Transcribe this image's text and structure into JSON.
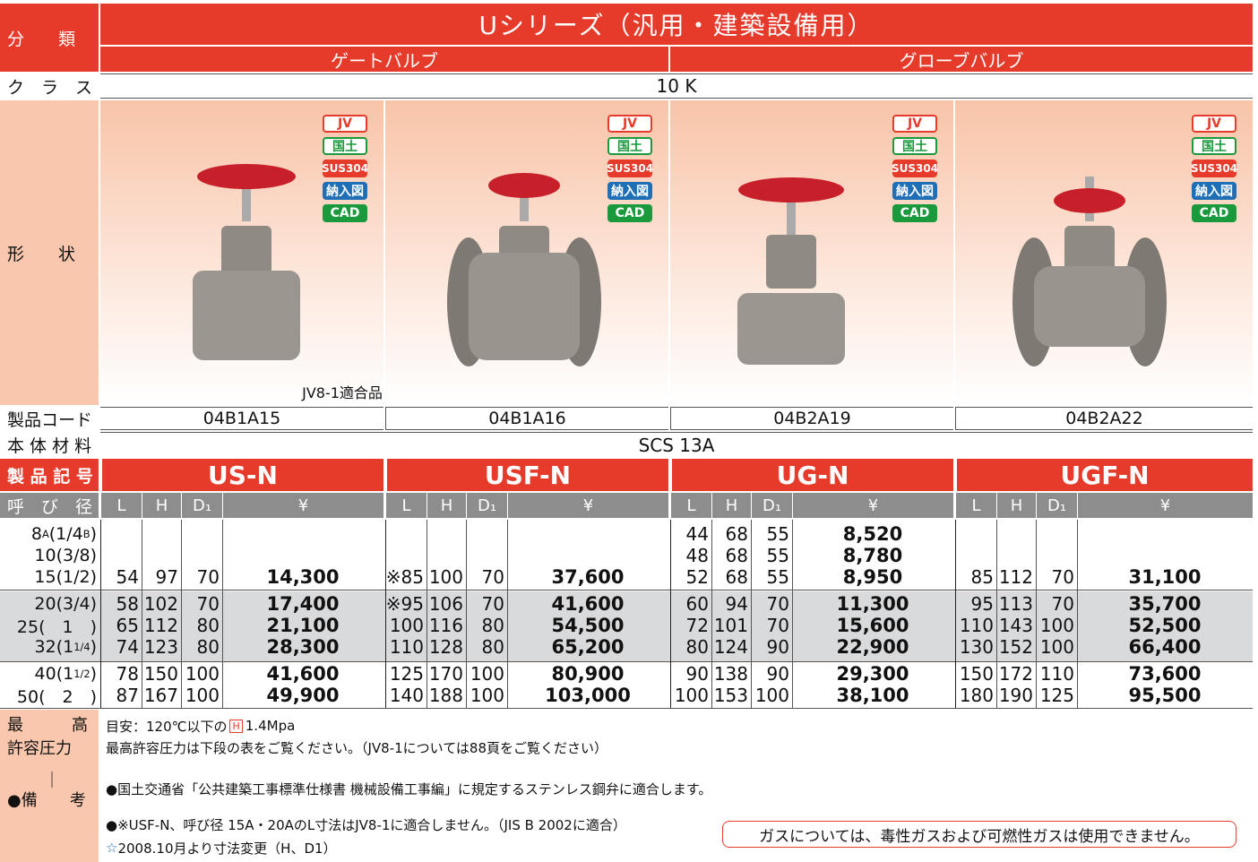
{
  "table": {
    "labels": {
      "category": "分　　類",
      "class": "ク　ラ　ス",
      "shape": "形　　状",
      "code": "製品コード",
      "material": "本 体 材 料",
      "model": "製 品 記 号",
      "size": "呼　び　径"
    },
    "title": "Uシリーズ（汎用・建築設備用）",
    "types": [
      "ゲートバルブ",
      "グローブバルブ"
    ],
    "class": "10 K",
    "material": "SCS 13A",
    "columns": [
      "L",
      "H",
      "D₁",
      "¥"
    ],
    "sizes": [
      [
        "8",
        "A",
        "(1/4",
        "B",
        ")"
      ],
      [
        "10(3/8)"
      ],
      [
        "15(1/2)"
      ],
      [
        "20(3/4)"
      ],
      [
        "25(　1　)"
      ],
      [
        "32(1",
        "1/4",
        ")"
      ],
      [
        "40(1",
        "1/2",
        ")"
      ],
      [
        "50(　2　)"
      ]
    ],
    "products": [
      {
        "model": "US-N",
        "code": "04B1A15",
        "caption": "JV8-1適合品",
        "badges": [
          "JV",
          "国土",
          "SUS304",
          "納入図",
          "CAD"
        ],
        "rows": [
          null,
          null,
          [
            "54",
            "97",
            "70",
            "14,300"
          ],
          [
            "58",
            "102",
            "70",
            "17,400"
          ],
          [
            "65",
            "112",
            "80",
            "21,100"
          ],
          [
            "74",
            "123",
            "80",
            "28,300"
          ],
          [
            "78",
            "150",
            "100",
            "41,600"
          ],
          [
            "87",
            "167",
            "100",
            "49,900"
          ]
        ]
      },
      {
        "model": "USF-N",
        "code": "04B1A16",
        "badges": [
          "JV",
          "国土",
          "SUS304",
          "納入図",
          "CAD"
        ],
        "rows": [
          null,
          null,
          [
            "※85",
            "100",
            "70",
            "37,600"
          ],
          [
            "※95",
            "106",
            "70",
            "41,600"
          ],
          [
            "100",
            "116",
            "80",
            "54,500"
          ],
          [
            "110",
            "128",
            "80",
            "65,200"
          ],
          [
            "125",
            "170",
            "100",
            "80,900"
          ],
          [
            "140",
            "188",
            "100",
            "103,000"
          ]
        ]
      },
      {
        "model": "UG-N",
        "code": "04B2A19",
        "badges": [
          "JV",
          "国土",
          "SUS304",
          "納入図",
          "CAD"
        ],
        "rows": [
          [
            "44",
            "68",
            "55",
            "8,520"
          ],
          [
            "48",
            "68",
            "55",
            "8,780"
          ],
          [
            "52",
            "68",
            "55",
            "8,950"
          ],
          [
            "60",
            "94",
            "70",
            "11,300"
          ],
          [
            "72",
            "101",
            "70",
            "15,600"
          ],
          [
            "80",
            "124",
            "90",
            "22,900"
          ],
          [
            "90",
            "138",
            "90",
            "29,300"
          ],
          [
            "100",
            "153",
            "100",
            "38,100"
          ]
        ]
      },
      {
        "model": "UGF-N",
        "code": "04B2A22",
        "badges": [
          "JV",
          "国土",
          "SUS304",
          "納入図",
          "CAD"
        ],
        "rows": [
          null,
          null,
          [
            "85",
            "112",
            "70",
            "31,100"
          ],
          [
            "95",
            "113",
            "70",
            "35,700"
          ],
          [
            "110",
            "143",
            "100",
            "52,500"
          ],
          [
            "130",
            "152",
            "100",
            "66,400"
          ],
          [
            "150",
            "172",
            "110",
            "73,600"
          ],
          [
            "180",
            "190",
            "125",
            "95,500"
          ]
        ]
      }
    ]
  },
  "notes": {
    "label": [
      "最　　　高",
      "許容圧力",
      "｜",
      "●備　　考"
    ],
    "pressure_prefix": "目安：120℃以下の",
    "pressure_mark": "H",
    "pressure_value": "1.4Mpa",
    "lines": [
      "最高許容圧力は下段の表をご覧ください。（JV8-1については88頁をご覧ください）",
      "●国土交通省「公共建築工事標準仕様書 機械設備工事編」に規定するステンレス鋼弁に適合します。",
      "●※USF-N、呼び径 15A・20AのL寸法はJV8-1に適合しません。（JIS B 2002に適合）"
    ],
    "star": "☆",
    "change": "2008.10月より寸法変更（H、D1）",
    "warning": "ガスについては、毒性ガスおよび可燃性ガスは使用できません。"
  }
}
